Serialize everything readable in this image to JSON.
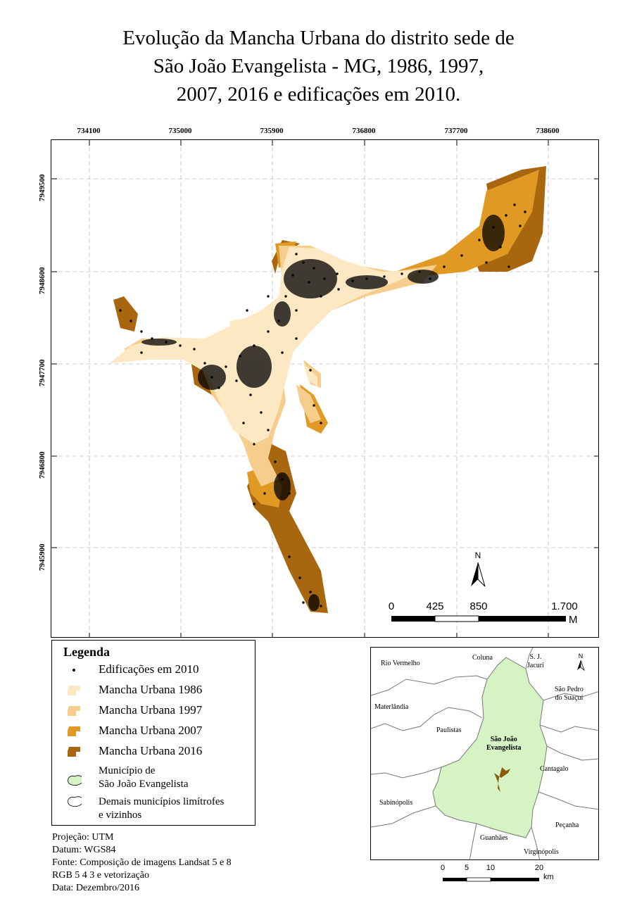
{
  "title": {
    "line1": "Evolução da Mancha Urbana do distrito sede de",
    "line2": "São João Evangelista - MG, 1986, 1997,",
    "line3": "2007, 2016 e edificações em 2010."
  },
  "axes": {
    "x_ticks": [
      "734100",
      "735000",
      "735900",
      "736800",
      "737700",
      "738600"
    ],
    "y_ticks": [
      "7949500",
      "7948600",
      "7947700",
      "7946800",
      "7945900"
    ]
  },
  "colors": {
    "mancha_1986": "#fde8c4",
    "mancha_1997": "#f7cd8e",
    "mancha_2007": "#e09a24",
    "mancha_2016": "#a8660f",
    "municipio": "#d6f3c4",
    "edificacoes": "#000000"
  },
  "north_arrow": {
    "label": "N"
  },
  "scale_bar": {
    "labels": [
      "0",
      "425",
      "850",
      "1.700"
    ],
    "unit": "M"
  },
  "legend": {
    "title": "Legenda",
    "items": [
      {
        "label": "Edificações em 2010",
        "icon": "dot-icon"
      },
      {
        "label": "Mancha Urbana 1986",
        "icon": "swatch-1986"
      },
      {
        "label": "Mancha Urbana 1997",
        "icon": "swatch-1997"
      },
      {
        "label": "Mancha Urbana 2007",
        "icon": "swatch-2007"
      },
      {
        "label": "Mancha Urbana 2016",
        "icon": "swatch-2016"
      }
    ],
    "municipio_line1": "Município de",
    "municipio_line2": "São João Evangelista",
    "demais_line1": "Demais municípios limítrofes",
    "demais_line2": "e vizinhos"
  },
  "metadata": {
    "projecao": "Projeção: UTM",
    "datum": "Datum: WGS84",
    "fonte": "Fonte: Composição de imagens Landsat 5 e 8",
    "rgb": "RGB 5 4 3 e vetorização",
    "data": "Data: Dezembro/2016"
  },
  "inset": {
    "municipalities": {
      "rio_vermelho": "Rio Vermelho",
      "coluna": "Coluna",
      "sj_jacuri_1": "S. J.",
      "sj_jacuri_2": "Jacuri",
      "sao_pedro_1": "São Pedro",
      "sao_pedro_2": "do Suaçuí",
      "materlandia": "Materlândia",
      "paulistas": "Paulistas",
      "sje_1": "São João",
      "sje_2": "Evangelista",
      "cantagalo": "Cantagalo",
      "sabinopolis": "Sabinópolis",
      "pecanha": "Peçanha",
      "guanhaes": "Guanhães",
      "virginopolis": "Virginópolis"
    },
    "north_label": "N",
    "scale_labels": [
      "0",
      "5",
      "10",
      "20"
    ],
    "scale_unit": "km"
  }
}
